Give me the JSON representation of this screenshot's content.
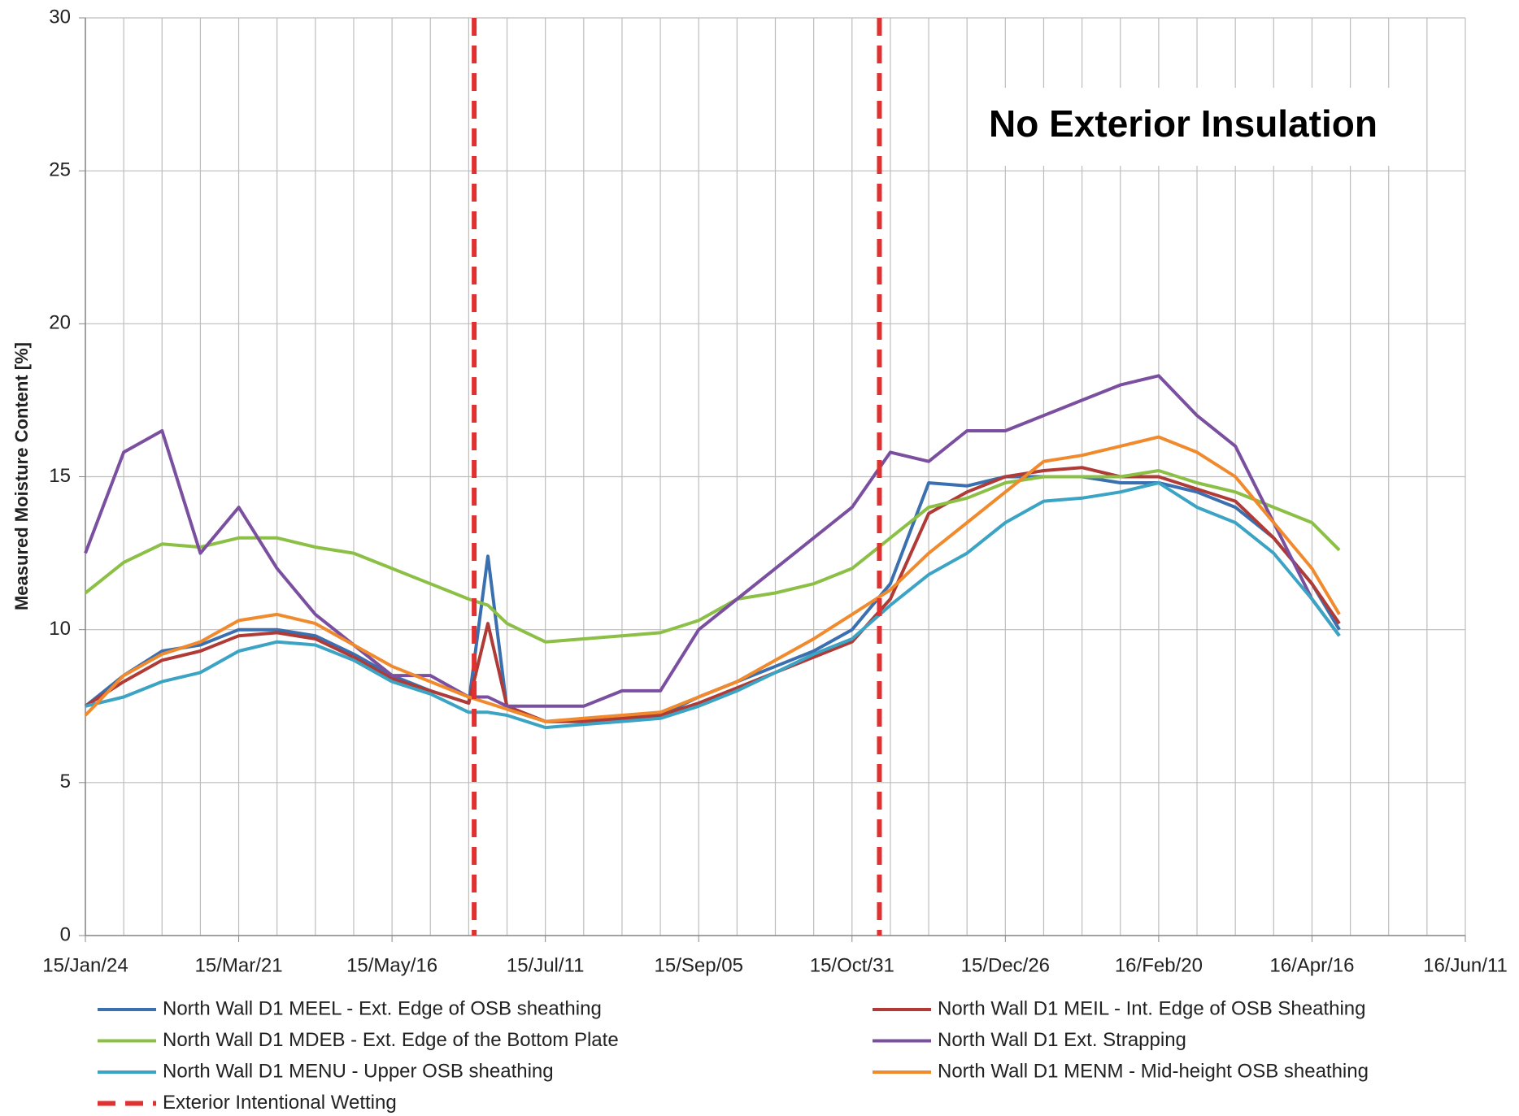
{
  "chart_data": {
    "type": "line",
    "annotation": "No Exterior Insulation",
    "y_label": "Measured Moisture Content [%]",
    "x": [
      "2015-01-24",
      "2015-02-07",
      "2015-02-21",
      "2015-03-07",
      "2015-03-21",
      "2015-04-04",
      "2015-04-18",
      "2015-05-02",
      "2015-05-16",
      "2015-05-30",
      "2015-06-13",
      "2015-06-20",
      "2015-06-27",
      "2015-07-11",
      "2015-07-25",
      "2015-08-08",
      "2015-08-22",
      "2015-09-05",
      "2015-09-19",
      "2015-10-03",
      "2015-10-17",
      "2015-10-31",
      "2015-11-14",
      "2015-11-28",
      "2015-12-12",
      "2015-12-26",
      "2016-01-09",
      "2016-01-23",
      "2016-02-06",
      "2016-02-20",
      "2016-03-05",
      "2016-03-19",
      "2016-04-02",
      "2016-04-16",
      "2016-04-26"
    ],
    "series": [
      {
        "name": "North Wall D1 MEEL - Ext. Edge of OSB sheathing",
        "color": "#3a6fb0",
        "values": [
          7.5,
          8.5,
          9.3,
          9.5,
          10.0,
          10.0,
          9.8,
          9.2,
          8.5,
          8.0,
          7.6,
          12.4,
          7.4,
          7.0,
          7.0,
          7.1,
          7.2,
          7.8,
          8.3,
          8.8,
          9.3,
          10.0,
          11.5,
          14.8,
          14.7,
          15.0,
          15.0,
          15.0,
          14.8,
          14.8,
          14.5,
          14.0,
          13.0,
          11.5,
          10.0
        ]
      },
      {
        "name": "North Wall D1 MEIL - Int. Edge of OSB Sheathing",
        "color": "#b03a36",
        "values": [
          7.5,
          8.3,
          9.0,
          9.3,
          9.8,
          9.9,
          9.7,
          9.1,
          8.4,
          8.0,
          7.6,
          10.2,
          7.5,
          7.0,
          7.0,
          7.1,
          7.2,
          7.6,
          8.1,
          8.6,
          9.1,
          9.6,
          11.0,
          13.8,
          14.5,
          15.0,
          15.2,
          15.3,
          15.0,
          15.0,
          14.6,
          14.2,
          13.0,
          11.5,
          10.2
        ]
      },
      {
        "name": "North Wall D1 MDEB - Ext. Edge of the Bottom Plate",
        "color": "#8cbf45",
        "values": [
          11.2,
          12.2,
          12.8,
          12.7,
          13.0,
          13.0,
          12.7,
          12.5,
          12.0,
          11.5,
          11.0,
          10.8,
          10.2,
          9.6,
          9.7,
          9.8,
          9.9,
          10.3,
          11.0,
          11.2,
          11.5,
          12.0,
          13.0,
          14.0,
          14.3,
          14.8,
          15.0,
          15.0,
          15.0,
          15.2,
          14.8,
          14.5,
          14.0,
          13.5,
          12.6
        ]
      },
      {
        "name": "North Wall D1 Ext. Strapping",
        "color": "#7a4fa0",
        "values": [
          12.5,
          15.8,
          16.5,
          12.5,
          14.0,
          12.0,
          10.5,
          9.5,
          8.5,
          8.5,
          7.8,
          7.8,
          7.5,
          7.5,
          7.5,
          8.0,
          8.0,
          10.0,
          11.0,
          12.0,
          13.0,
          14.0,
          15.8,
          15.5,
          16.5,
          16.5,
          17.0,
          17.5,
          18.0,
          18.3,
          17.0,
          16.0,
          13.5,
          11.0,
          9.8
        ]
      },
      {
        "name": "North Wall D1 MENU - Upper OSB sheathing",
        "color": "#3ba3c4",
        "values": [
          7.5,
          7.8,
          8.3,
          8.6,
          9.3,
          9.6,
          9.5,
          9.0,
          8.3,
          7.9,
          7.3,
          7.3,
          7.2,
          6.8,
          6.9,
          7.0,
          7.1,
          7.5,
          8.0,
          8.6,
          9.2,
          9.7,
          10.8,
          11.8,
          12.5,
          13.5,
          14.2,
          14.3,
          14.5,
          14.8,
          14.0,
          13.5,
          12.5,
          11.0,
          9.8
        ]
      },
      {
        "name": "North Wall D1 MENM - Mid-height OSB sheathing",
        "color": "#f08a2c",
        "values": [
          7.2,
          8.5,
          9.2,
          9.6,
          10.3,
          10.5,
          10.2,
          9.5,
          8.8,
          8.3,
          7.8,
          7.6,
          7.4,
          7.0,
          7.1,
          7.2,
          7.3,
          7.8,
          8.3,
          9.0,
          9.7,
          10.5,
          11.3,
          12.5,
          13.5,
          14.5,
          15.5,
          15.7,
          16.0,
          16.3,
          15.8,
          15.0,
          13.5,
          12.0,
          10.5
        ]
      }
    ],
    "markers": {
      "name": "Exterior Intentional Wetting",
      "color": "#e03030",
      "x": [
        "2015-06-15",
        "2015-11-10"
      ]
    },
    "xlim": [
      "2015-01-24",
      "2016-06-11"
    ],
    "xticks": [
      {
        "value": "2015-01-24",
        "label": "15/Jan/24"
      },
      {
        "value": "2015-03-21",
        "label": "15/Mar/21"
      },
      {
        "value": "2015-05-16",
        "label": "15/May/16"
      },
      {
        "value": "2015-07-11",
        "label": "15/Jul/11"
      },
      {
        "value": "2015-09-05",
        "label": "15/Sep/05"
      },
      {
        "value": "2015-10-31",
        "label": "15/Oct/31"
      },
      {
        "value": "2015-12-26",
        "label": "15/Dec/26"
      },
      {
        "value": "2016-02-20",
        "label": "16/Feb/20"
      },
      {
        "value": "2016-04-16",
        "label": "16/Apr/16"
      },
      {
        "value": "2016-06-11",
        "label": "16/Jun/11"
      }
    ],
    "ylim": [
      0,
      30
    ],
    "yticks": [
      0,
      5,
      10,
      15,
      20,
      25,
      30
    ],
    "grid": true
  }
}
